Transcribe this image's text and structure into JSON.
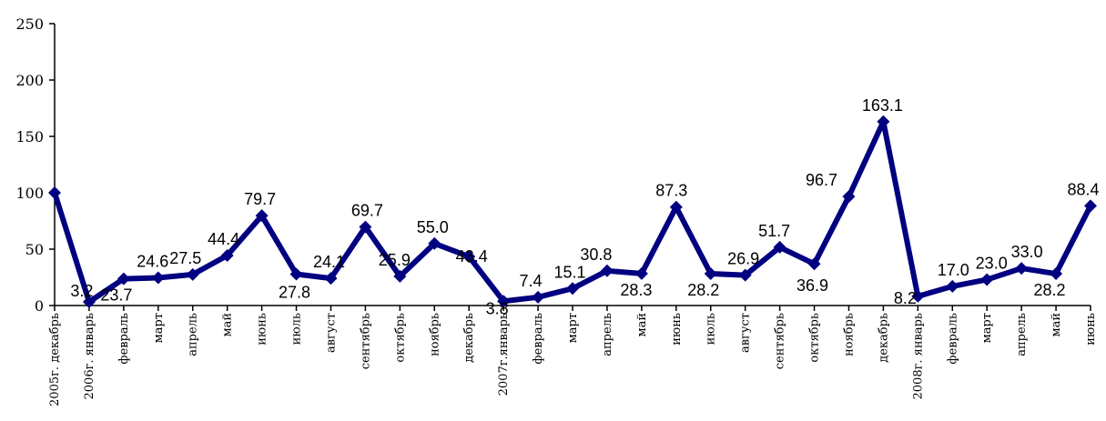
{
  "chart_data": {
    "type": "line",
    "title": "",
    "xlabel": "",
    "ylabel": "",
    "ylim": [
      0,
      250
    ],
    "yticks": [
      "0",
      "50",
      "100",
      "150",
      "200",
      "250"
    ],
    "grid": false,
    "legend": "none",
    "colors": {
      "series": "#000080",
      "axis": "#000000"
    },
    "categories": [
      "2005г. декабрь",
      "2006г. январь",
      "февраль",
      "март",
      "апрель",
      "май",
      "июнь",
      "июль",
      "август",
      "сентябрь",
      "октябрь",
      "ноябрь",
      "декабрь",
      "2007г.январь",
      "февраль",
      "март",
      "апрель",
      "май",
      "июнь",
      "июль",
      "август",
      "сентябрь",
      "октябрь",
      "ноябрь",
      "декабрь",
      "2008г. январь",
      "февраль",
      "март",
      "апрель",
      "май",
      "июнь"
    ],
    "series": [
      {
        "values": [
          100,
          3.2,
          23.7,
          24.6,
          27.5,
          44.4,
          79.7,
          27.8,
          24.1,
          69.7,
          25.9,
          55.0,
          43.4,
          3.8,
          7.4,
          15.1,
          30.8,
          28.3,
          87.3,
          28.2,
          26.9,
          51.7,
          36.9,
          96.7,
          163.1,
          8.2,
          17.0,
          23.0,
          33.0,
          28.2,
          88.4
        ],
        "labels": [
          "",
          "3.2",
          "23.7",
          "24.6",
          "27.5",
          "44.4",
          "79.7",
          "27.8",
          "24.1",
          "69.7",
          "25.9",
          "55.0",
          "43.4",
          "3.8",
          "7.4",
          "15.1",
          "30.8",
          "28.3",
          "87.3",
          "28.2",
          "26.9",
          "51.7",
          "36.9",
          "96.7",
          "163.1",
          "8.2",
          "17.0",
          "23.0",
          "33.0",
          "28.2",
          "88.4"
        ]
      }
    ]
  }
}
